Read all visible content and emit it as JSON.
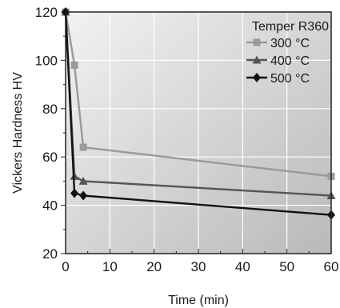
{
  "chart_data": {
    "type": "line",
    "title": "",
    "xlabel": "Time (min)",
    "ylabel": "Vickers Hardness HV",
    "xlim": [
      0,
      60
    ],
    "ylim": [
      20,
      120
    ],
    "x_ticks": [
      "0",
      "10",
      "20",
      "30",
      "40",
      "50",
      "60"
    ],
    "y_ticks": [
      "20",
      "40",
      "60",
      "80",
      "100",
      "120"
    ],
    "grid": true,
    "legend_title": "Temper R360",
    "legend_position": "top-right",
    "series": [
      {
        "name": "300 °C",
        "marker": "square",
        "color": "#9a9a9a",
        "x": [
          0,
          2,
          4,
          60
        ],
        "y": [
          120,
          98,
          64,
          52
        ]
      },
      {
        "name": "400 °C",
        "marker": "triangle",
        "color": "#555555",
        "x": [
          0,
          2,
          4,
          60
        ],
        "y": [
          120,
          52,
          50,
          44
        ]
      },
      {
        "name": "500 °C",
        "marker": "diamond",
        "color": "#111111",
        "x": [
          0,
          2,
          4,
          60
        ],
        "y": [
          120,
          45,
          44,
          36
        ]
      }
    ]
  }
}
